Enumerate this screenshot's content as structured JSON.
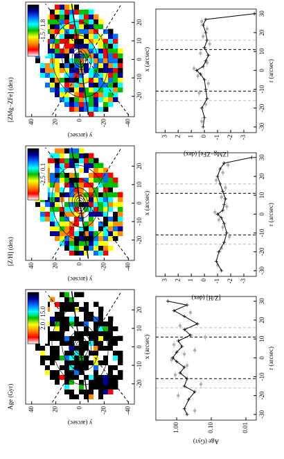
{
  "chart_data": [
    {
      "type": "map",
      "title": "Age (Gyr)",
      "colorbar_label": "2.0 / 15.0",
      "xlabel": "x (arcsec)",
      "ylabel": "y (arcsec)",
      "xlim": [
        -31,
        31
      ],
      "ylim": [
        -45,
        45
      ],
      "xticks": [
        -20,
        -10,
        0,
        10,
        20
      ],
      "yticks": [
        40,
        20,
        0,
        -20,
        -40
      ],
      "colormap": [
        "#ffffff",
        "#ff0000",
        "#ff8c00",
        "#ffff00",
        "#00c000",
        "#00ffff",
        "#0070ff",
        "#0000a0",
        "#000000"
      ]
    },
    {
      "type": "map",
      "title": "[Z/H] (dex)",
      "colorbar_label": "-2.5 / 0.1",
      "xlabel": "x (arcsec)",
      "ylabel": "y (arcsec)",
      "xlim": [
        -31,
        31
      ],
      "ylim": [
        -45,
        45
      ],
      "xticks": [
        -20,
        -10,
        0,
        10,
        20
      ],
      "yticks": [
        40,
        20,
        0,
        -20,
        -40
      ],
      "colormap": [
        "#ffffff",
        "#ff0000",
        "#ff8c00",
        "#ffff00",
        "#00c000",
        "#00ffff",
        "#0070ff",
        "#0000a0",
        "#000000"
      ]
    },
    {
      "type": "map",
      "title": "[ZMg−ZFe] (dex)",
      "colorbar_label": "-1.5 / 1.8",
      "xlabel": "x (arcsec)",
      "ylabel": "y (arcsec)",
      "xlim": [
        -31,
        31
      ],
      "ylim": [
        -45,
        45
      ],
      "xticks": [
        -20,
        -10,
        0,
        10,
        20
      ],
      "yticks": [
        40,
        20,
        0,
        -20,
        -40
      ],
      "colormap": [
        "#ffffff",
        "#ff0000",
        "#ff8c00",
        "#ffff00",
        "#00c000",
        "#00ffff",
        "#0070ff",
        "#0000a0",
        "#000000"
      ]
    },
    {
      "type": "line",
      "xlabel": "r (arcsec)",
      "ylabel": "Age (Gyr)",
      "log_scale": true,
      "xlim": [
        -33,
        32.5
      ],
      "ylim": [
        0.005,
        4
      ],
      "xticks": [
        -30,
        -20,
        -10,
        0,
        10,
        20,
        30
      ],
      "yticks": [
        0.01,
        {
          "value": 0.1,
          "label": "0.10"
        },
        {
          "value": 1,
          "label": "1.00"
        }
      ],
      "dashed_lines": [
        -11,
        11
      ],
      "faint_lines": [
        -16,
        16
      ],
      "line_color": "#000000",
      "point_color": "#b0b0b0",
      "x": [
        -30,
        -27,
        -22,
        -18,
        -15,
        -11,
        -8,
        -5,
        -2,
        0,
        3,
        6,
        9,
        12,
        15,
        18,
        22,
        25,
        28,
        30
      ],
      "values": [
        0.5,
        0.6,
        0.45,
        0.3,
        0.6,
        0.5,
        0.8,
        0.6,
        1.0,
        1.3,
        1.0,
        0.7,
        0.9,
        0.4,
        0.6,
        0.25,
        0.6,
        1.2,
        0.5,
        1.8
      ],
      "points_x": [
        -28,
        -20,
        -14,
        -9,
        -4,
        -1,
        2,
        4,
        7,
        11,
        17,
        24
      ],
      "points_values": [
        0.3,
        0.9,
        0.2,
        1.1,
        0.5,
        1.4,
        0.6,
        0.3,
        1.2,
        0.15,
        0.8,
        0.4
      ]
    },
    {
      "type": "line",
      "xlabel": "r (arcsec)",
      "ylabel": "[Z/H] (dex)",
      "log_scale": false,
      "xlim": [
        -33,
        32.5
      ],
      "ylim": [
        -3.95,
        3.7
      ],
      "xticks": [
        -30,
        -20,
        -10,
        0,
        10,
        20,
        30
      ],
      "yticks": [
        3,
        2,
        1,
        0,
        -1,
        -2,
        -3
      ],
      "dashed_lines": [
        -11,
        11
      ],
      "faint_lines": [
        -16,
        16
      ],
      "line_color": "#000000",
      "point_color": "#b0b0b0",
      "x": [
        -30,
        -25,
        -20,
        -15,
        -10,
        -5,
        -2,
        0,
        2,
        5,
        8,
        12,
        16,
        20,
        24,
        27,
        30
      ],
      "values": [
        -1.3,
        -0.9,
        -1.1,
        -1.5,
        -1.7,
        -1.5,
        -1.3,
        -1.0,
        -1.4,
        -1.5,
        -1.6,
        -1.4,
        -1.2,
        -1.0,
        -1.2,
        -1.5,
        -3.6
      ],
      "points_x": [
        -27,
        -18,
        -12,
        -7,
        -3,
        1,
        4,
        9,
        14,
        18,
        22,
        26
      ],
      "points_values": [
        -1.0,
        -1.3,
        -1.9,
        -1.4,
        -1.1,
        -0.8,
        -1.7,
        -1.3,
        -1.6,
        -0.9,
        -1.4,
        -1.8
      ]
    },
    {
      "type": "line",
      "xlabel": "r (arcsec)",
      "ylabel": "[ZMg−ZFe] (dex)",
      "log_scale": false,
      "xlim": [
        -33,
        32.5
      ],
      "ylim": [
        -3.95,
        3.7
      ],
      "xticks": [
        -30,
        -20,
        -10,
        0,
        10,
        20,
        30
      ],
      "yticks": [
        3,
        2,
        1,
        0,
        -1,
        -2,
        -3
      ],
      "dashed_lines": [
        -11,
        11
      ],
      "faint_lines": [
        -16,
        16
      ],
      "line_color": "#000000",
      "point_color": "#b0b0b0",
      "x": [
        -30,
        -25,
        -20,
        -15,
        -10,
        -5,
        -2,
        0,
        2,
        5,
        8,
        12,
        16,
        20,
        24,
        27,
        30
      ],
      "values": [
        0.1,
        0.0,
        0.2,
        -0.2,
        -0.1,
        0.0,
        0.3,
        0.6,
        0.1,
        -0.1,
        -0.3,
        0.0,
        -0.2,
        -0.1,
        0.1,
        -0.1,
        -3.8
      ],
      "points_x": [
        -27,
        -18,
        -12,
        -7,
        -3,
        1,
        4,
        9,
        14,
        18,
        22,
        26
      ],
      "points_values": [
        0.2,
        -0.1,
        0.4,
        -0.3,
        0.5,
        0.8,
        -0.2,
        0.3,
        -0.4,
        0.1,
        -0.2,
        0.2
      ]
    }
  ]
}
